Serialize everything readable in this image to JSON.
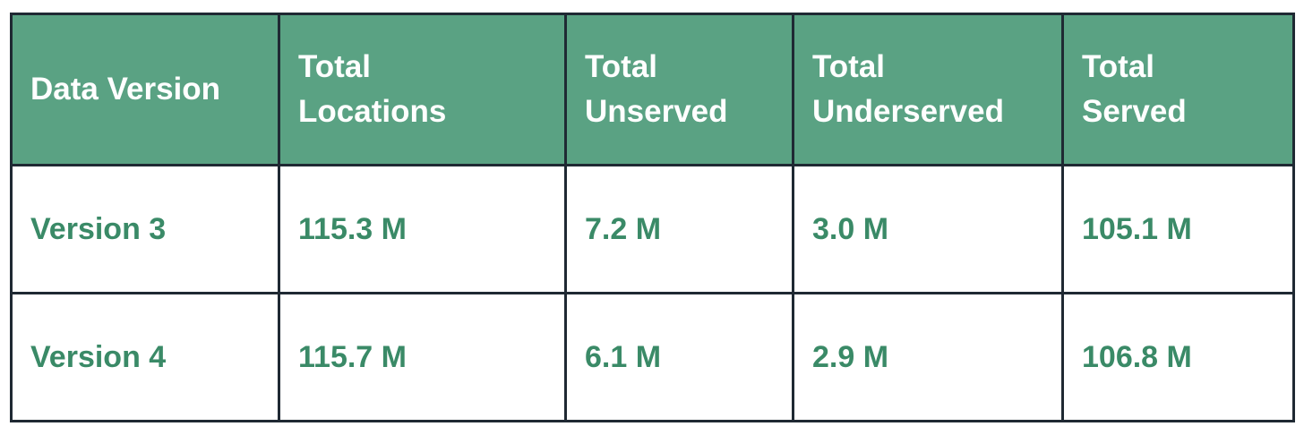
{
  "table": {
    "header": [
      [
        "Data Version"
      ],
      [
        "Total",
        "Locations"
      ],
      [
        "Total",
        "Unserved"
      ],
      [
        "Total",
        "Underserved"
      ],
      [
        "Total",
        "Served"
      ]
    ],
    "rows": [
      [
        "Version 3",
        "115.3 M",
        "7.2 M",
        "3.0 M",
        "105.1 M"
      ],
      [
        "Version 4",
        "115.7 M",
        "6.1 M",
        "2.9 M",
        "106.8 M"
      ]
    ]
  }
}
